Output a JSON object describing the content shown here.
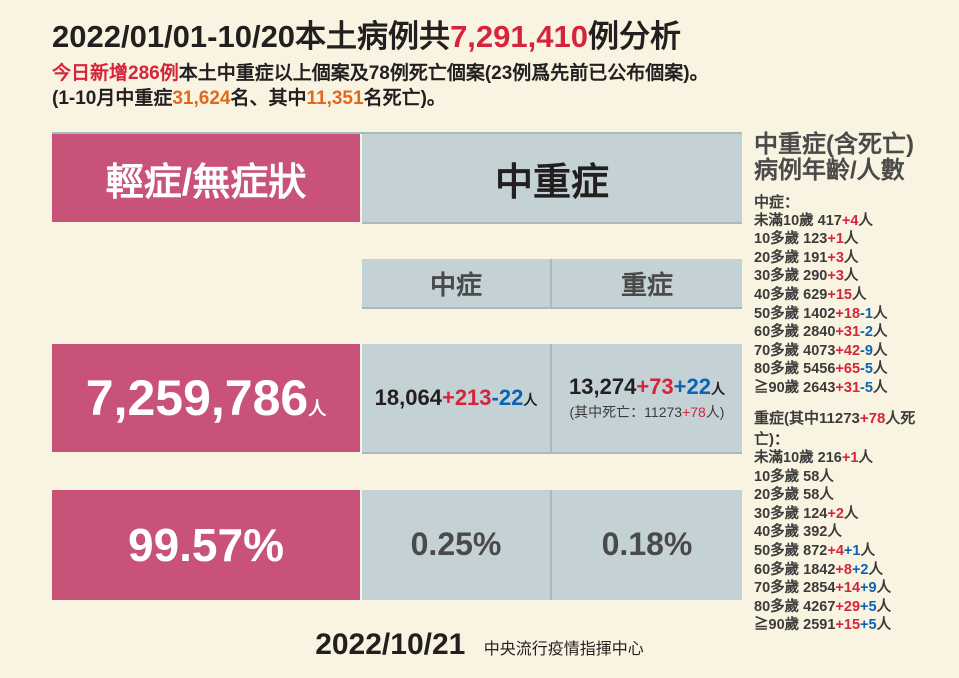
{
  "colors": {
    "background": "#f9f3e1",
    "pink": "#c95278",
    "gray": "#c4d2d6",
    "text": "#231f20",
    "accent_red": "#d6243c",
    "accent_blue": "#0b63b6",
    "accent_orange": "#e06a1e",
    "table_border": "#a7babf"
  },
  "title": {
    "pre": "2022/01/01-10/20本土病例共",
    "red": "7,291,410",
    "post": "例分析"
  },
  "subtitle": {
    "l1_red": "今日新增286例",
    "l1_black": "本土中重症以上個案及78例死亡個案(23例爲先前已公布個案)。",
    "l2_pre": "(1-10月中重症",
    "l2_orange1": "31,624",
    "l2_mid": "名、其中",
    "l2_orange2": "11,351",
    "l2_post": "名死亡)。"
  },
  "table": {
    "col1_header": "輕症/無症狀",
    "col2_header": "中重症",
    "sub_moderate": "中症",
    "sub_severe": "重症",
    "mild": {
      "count": "7,259,786",
      "unit": "人",
      "pct": "99.57%"
    },
    "moderate": {
      "base": "18,064",
      "red": "+213",
      "blue": "-22",
      "unit": "人",
      "pct": "0.25%"
    },
    "severe": {
      "base": "13,274",
      "red": "+73",
      "blue": "+22",
      "unit": "人",
      "pct": "0.18%",
      "note_pre": "(其中死亡：11273",
      "note_red": "+78",
      "note_post": "人)"
    }
  },
  "side": {
    "title": "中重症(含死亡)病例年齡/人數",
    "moderate_hdr": "中症：",
    "moderate_rows": [
      {
        "age": "未滿10歲",
        "base": "417",
        "red": "+4",
        "unit": "人"
      },
      {
        "age": "10多歲",
        "base": "123",
        "red": "+1",
        "unit": "人"
      },
      {
        "age": "20多歲",
        "base": "191",
        "red": "+3",
        "unit": "人"
      },
      {
        "age": "30多歲",
        "base": "290",
        "red": "+3",
        "unit": "人"
      },
      {
        "age": "40多歲",
        "base": "629",
        "red": "+15",
        "unit": "人"
      },
      {
        "age": "50多歲",
        "base": "1402",
        "red": "+18",
        "blue": "-1",
        "unit": "人"
      },
      {
        "age": "60多歲",
        "base": "2840",
        "red": "+31",
        "blue": "-2",
        "unit": "人"
      },
      {
        "age": "70多歲",
        "base": "4073",
        "red": "+42",
        "blue": "-9",
        "unit": "人"
      },
      {
        "age": "80多歲",
        "base": "5456",
        "red": "+65",
        "blue": "-5",
        "unit": "人"
      },
      {
        "age": "≧90歲",
        "base": "2643",
        "red": "+31",
        "blue": "-5",
        "unit": "人"
      }
    ],
    "severe_hdr_pre": "重症(其中11273",
    "severe_hdr_red": "+78",
    "severe_hdr_post": "人死亡)：",
    "severe_rows": [
      {
        "age": "未滿10歲",
        "base": "216",
        "red": "+1",
        "unit": "人"
      },
      {
        "age": "10多歲",
        "base": "58",
        "unit": "人"
      },
      {
        "age": "20多歲",
        "base": "58",
        "unit": "人"
      },
      {
        "age": "30多歲",
        "base": "124",
        "red": "+2",
        "unit": "人"
      },
      {
        "age": "40多歲",
        "base": "392",
        "unit": "人"
      },
      {
        "age": "50多歲",
        "base": "872",
        "red": "+4",
        "blue": "+1",
        "unit": "人"
      },
      {
        "age": "60多歲",
        "base": "1842",
        "red": "+8",
        "blue": "+2",
        "unit": "人"
      },
      {
        "age": "70多歲",
        "base": "2854",
        "red": "+14",
        "blue": "+9",
        "unit": "人"
      },
      {
        "age": "80多歲",
        "base": "4267",
        "red": "+29",
        "blue": "+5",
        "unit": "人"
      },
      {
        "age": "≧90歲",
        "base": "2591",
        "red": "+15",
        "blue": "+5",
        "unit": "人"
      }
    ]
  },
  "footer": {
    "date": "2022/10/21",
    "source": "中央流行疫情指揮中心"
  }
}
